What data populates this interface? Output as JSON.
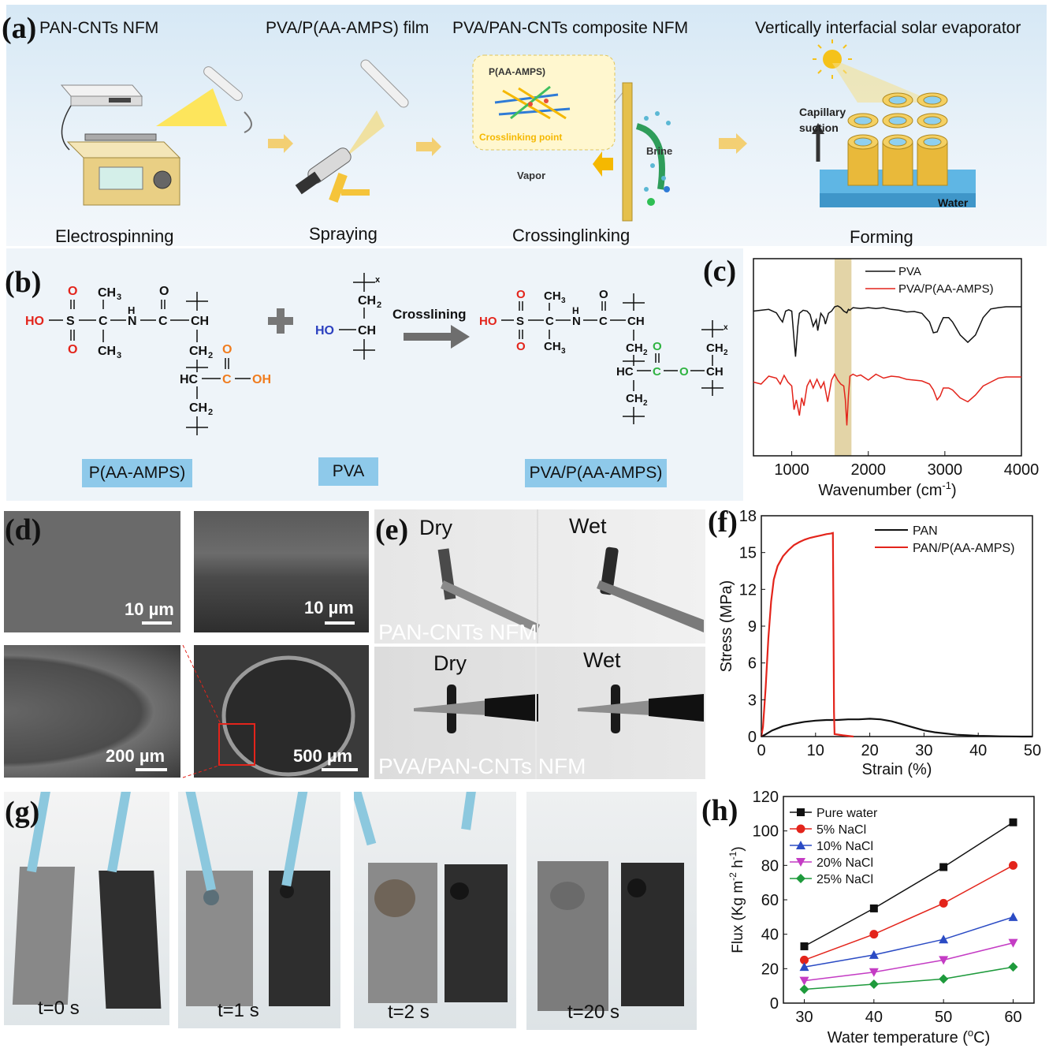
{
  "panel_a": {
    "letter": "(a)",
    "titles": [
      "PAN-CNTs NFM",
      "PVA/P(AA-AMPS) film",
      "PVA/PAN-CNTs composite NFM",
      "Vertically interfacial solar evaporator"
    ],
    "steps": [
      "Electrospinning",
      "Spraying",
      "Crossinglinking",
      "Forming"
    ],
    "inset_label": "P(AA-AMPS)",
    "crosslinking_point": "Crosslinking point",
    "vapor": "Vapor",
    "brine": "Brine",
    "capillary": "Capillary",
    "suction": "suction",
    "water": "Water"
  },
  "panel_b": {
    "letter": "(b)",
    "reaction_label": "Crosslining",
    "labels": [
      "P(AA-AMPS)",
      "PVA",
      "PVA/P(AA-AMPS)"
    ],
    "atoms": {
      "ho": "HO",
      "s": "S",
      "o": "O",
      "c": "C",
      "ch": "CH",
      "ch2": "CH",
      "ch3": "CH",
      "hc": "HC",
      "oh": "OH",
      "n": "N",
      "h": "H",
      "sub2": "2",
      "sub3": "3",
      "x": "x"
    }
  },
  "panel_c": {
    "letter": "(c)"
  },
  "panel_d": {
    "letter": "(d)",
    "scalebars": [
      "10 µm",
      "10 µm",
      "200 µm",
      "500 µm"
    ]
  },
  "panel_e": {
    "letter": "(e)",
    "top": {
      "dry": "Dry",
      "wet": "Wet",
      "label": "PAN-CNTs NFM"
    },
    "bottom": {
      "dry": "Dry",
      "wet": "Wet",
      "label": "PVA/PAN-CNTs NFM"
    }
  },
  "panel_f": {
    "letter": "(f)"
  },
  "panel_g": {
    "letter": "(g)",
    "times": [
      "t=0 s",
      "t=1 s",
      "t=2 s",
      "t=20 s"
    ]
  },
  "panel_h": {
    "letter": "(h)"
  },
  "colors": {
    "banner": "#cfe3f1",
    "red": "#e3241b",
    "black": "#111111",
    "blue_label": "#8ec9ea",
    "highlight": "#d9c58a"
  },
  "chart_data": [
    {
      "id": "c",
      "type": "line",
      "title": "",
      "xlabel": "Wavenumber (cm",
      "xlabel_sup": "-1",
      "xlabel_end": ")",
      "ylabel": "",
      "xlim": [
        500,
        4000
      ],
      "xticks": [
        "1000",
        "2000",
        "3000",
        "4000"
      ],
      "highlight_band": [
        1560,
        1780
      ],
      "legend_position": "top-right",
      "series": [
        {
          "name": "PVA",
          "color": "#111111",
          "x": [
            500,
            700,
            800,
            850,
            880,
            920,
            960,
            1000,
            1030,
            1050,
            1080,
            1100,
            1150,
            1200,
            1240,
            1280,
            1320,
            1340,
            1380,
            1420,
            1440,
            1480,
            1520,
            1560,
            1600,
            1640,
            1680,
            1720,
            1740,
            1760,
            1800,
            1900,
            2000,
            2100,
            2200,
            2300,
            2400,
            2500,
            2600,
            2700,
            2800,
            2850,
            2900,
            2940,
            2980,
            3050,
            3100,
            3200,
            3300,
            3400,
            3500,
            3600,
            3700,
            3800,
            4000
          ],
          "y": [
            0.1,
            0.14,
            0.06,
            -0.08,
            -0.15,
            0.1,
            0.13,
            0.1,
            -0.55,
            -0.95,
            -0.25,
            0.05,
            0.12,
            0.1,
            0.02,
            -0.25,
            -0.1,
            -0.35,
            0.05,
            -0.05,
            -0.2,
            0.05,
            0.1,
            0.2,
            0.22,
            0.18,
            0.1,
            0.06,
            0.14,
            0.12,
            0.18,
            0.16,
            0.18,
            0.16,
            0.18,
            0.14,
            0.12,
            0.08,
            0.09,
            0.05,
            -0.15,
            -0.4,
            -0.38,
            -0.2,
            -0.05,
            -0.05,
            -0.15,
            -0.45,
            -0.62,
            -0.45,
            -0.05,
            0.15,
            0.18,
            0.2,
            0.2
          ]
        },
        {
          "name": "PVA/P(AA-AMPS)",
          "color": "#e3241b",
          "x": [
            500,
            600,
            700,
            800,
            850,
            900,
            950,
            1000,
            1030,
            1060,
            1100,
            1130,
            1160,
            1200,
            1240,
            1280,
            1330,
            1380,
            1420,
            1470,
            1520,
            1560,
            1600,
            1640,
            1680,
            1700,
            1720,
            1740,
            1760,
            1800,
            1850,
            1900,
            2000,
            2100,
            2200,
            2300,
            2400,
            2500,
            2600,
            2700,
            2800,
            2850,
            2900,
            2940,
            2980,
            3050,
            3100,
            3200,
            3300,
            3400,
            3500,
            3600,
            3700,
            3800,
            4000
          ],
          "y": [
            0.15,
            0.1,
            0.3,
            0.25,
            0.1,
            0.32,
            0.15,
            0.05,
            -0.55,
            -0.3,
            -0.7,
            -0.25,
            -0.45,
            0.05,
            0.2,
            0.0,
            0.22,
            0.0,
            0.15,
            -0.35,
            0.2,
            0.35,
            0.2,
            0.1,
            0.05,
            -0.3,
            -0.95,
            -0.2,
            0.3,
            0.35,
            0.3,
            0.33,
            0.2,
            0.35,
            0.25,
            0.3,
            0.28,
            0.22,
            0.2,
            0.18,
            0.1,
            -0.05,
            -0.3,
            -0.2,
            0.0,
            0.0,
            -0.05,
            -0.25,
            -0.35,
            -0.18,
            0.05,
            0.15,
            0.25,
            0.28,
            0.28
          ]
        }
      ]
    },
    {
      "id": "f",
      "type": "line",
      "title": "",
      "xlabel": "Strain (%)",
      "ylabel": "Stress (MPa)",
      "xlim": [
        0,
        50
      ],
      "ylim": [
        0,
        18
      ],
      "xticks": [
        "0",
        "10",
        "20",
        "30",
        "40",
        "50"
      ],
      "yticks": [
        "0",
        "3",
        "6",
        "9",
        "12",
        "15",
        "18"
      ],
      "legend_position": "top-right",
      "series": [
        {
          "name": "PAN",
          "color": "#111111",
          "x": [
            0,
            0.5,
            2,
            4,
            6,
            8,
            10,
            12,
            14,
            16,
            18,
            20,
            22,
            24,
            26,
            28,
            30,
            32,
            34,
            36,
            38,
            40,
            42,
            44,
            46,
            48,
            50
          ],
          "y": [
            0,
            0.1,
            0.5,
            0.85,
            1.05,
            1.2,
            1.3,
            1.35,
            1.35,
            1.4,
            1.4,
            1.45,
            1.4,
            1.25,
            1.0,
            0.75,
            0.5,
            0.35,
            0.25,
            0.15,
            0.1,
            0.06,
            0.04,
            0.02,
            0.01,
            0.0,
            0.0
          ]
        },
        {
          "name": "PAN/P(AA-AMPS)",
          "color": "#e3241b",
          "x": [
            0,
            0.3,
            0.8,
            1.3,
            1.8,
            2.3,
            3,
            4,
            5,
            6,
            7,
            8,
            9,
            10,
            11,
            12,
            12.8,
            13.2,
            13.3,
            13.4,
            13.5,
            15,
            17
          ],
          "y": [
            0,
            0.8,
            4.0,
            8.0,
            11.0,
            12.8,
            13.9,
            14.7,
            15.2,
            15.6,
            15.85,
            16.05,
            16.2,
            16.3,
            16.4,
            16.5,
            16.55,
            16.6,
            10.0,
            2.0,
            0.2,
            0.1,
            0.0
          ]
        }
      ]
    },
    {
      "id": "h",
      "type": "line",
      "title": "",
      "xlabel": "Water temperature (",
      "xlabel_sup": "o",
      "xlabel_end": "C)",
      "ylabel": "Flux (Kg m",
      "xlim": [
        27,
        63
      ],
      "ylim": [
        0,
        120
      ],
      "xticks": [
        "30",
        "40",
        "50",
        "60"
      ],
      "yticks": [
        "0",
        "20",
        "40",
        "60",
        "80",
        "100",
        "120"
      ],
      "categories": [
        30,
        40,
        50,
        60
      ],
      "legend_position": "top-left",
      "series": [
        {
          "name": "Pure water",
          "color": "#111111",
          "marker": "square",
          "values": [
            33,
            55,
            79,
            105
          ]
        },
        {
          "name": "5% NaCl",
          "color": "#e3241b",
          "marker": "circle",
          "values": [
            25,
            40,
            58,
            80
          ]
        },
        {
          "name": "10% NaCl",
          "color": "#2b4bc4",
          "marker": "triangle",
          "values": [
            21,
            28,
            37,
            50
          ]
        },
        {
          "name": "20% NaCl",
          "color": "#c43cc4",
          "marker": "triangle-down",
          "values": [
            13,
            18,
            25,
            35
          ]
        },
        {
          "name": "25% NaCl",
          "color": "#1e9a3c",
          "marker": "diamond",
          "values": [
            8,
            11,
            14,
            21
          ]
        }
      ]
    }
  ]
}
